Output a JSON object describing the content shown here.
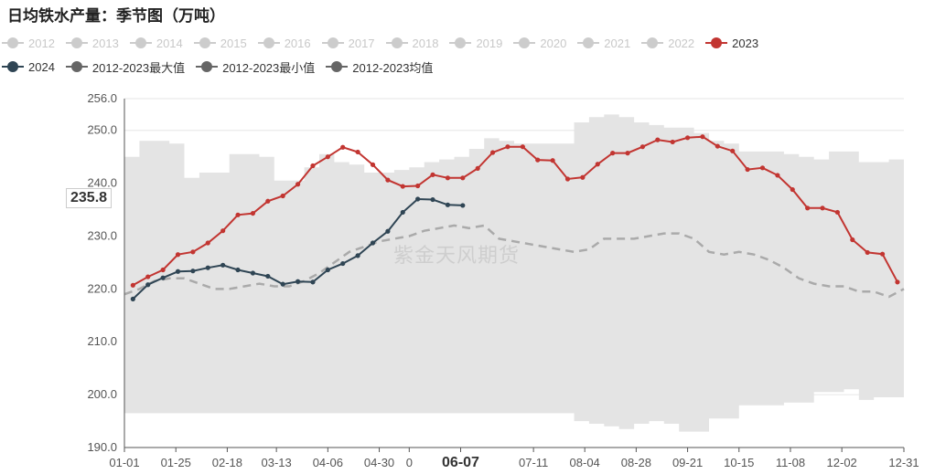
{
  "title": "日均铁水产量：季节图（万吨）",
  "legend": {
    "row1": [
      {
        "label": "2012",
        "color": "#cccccc",
        "off": true
      },
      {
        "label": "2013",
        "color": "#cccccc",
        "off": true
      },
      {
        "label": "2014",
        "color": "#cccccc",
        "off": true
      },
      {
        "label": "2015",
        "color": "#cccccc",
        "off": true
      },
      {
        "label": "2016",
        "color": "#cccccc",
        "off": true
      },
      {
        "label": "2017",
        "color": "#cccccc",
        "off": true
      },
      {
        "label": "2018",
        "color": "#cccccc",
        "off": true
      },
      {
        "label": "2019",
        "color": "#cccccc",
        "off": true
      },
      {
        "label": "2020",
        "color": "#cccccc",
        "off": true
      },
      {
        "label": "2021",
        "color": "#cccccc",
        "off": true
      },
      {
        "label": "2022",
        "color": "#cccccc",
        "off": true
      },
      {
        "label": "2023",
        "color": "#c23531",
        "off": false
      }
    ],
    "row2": [
      {
        "label": "2024",
        "color": "#2f4554",
        "off": false
      },
      {
        "label": "2012-2023最大值",
        "color": "#666666",
        "off": false
      },
      {
        "label": "2012-2023最小值",
        "color": "#666666",
        "off": false
      },
      {
        "label": "2012-2023均值",
        "color": "#666666",
        "off": false
      }
    ]
  },
  "watermark": "紫金天风期货",
  "tooltip_value": "235.8",
  "chart_data": {
    "type": "line",
    "title": "日均铁水产量：季节图（万吨）",
    "xlabel": "",
    "ylabel": "",
    "ylim": [
      190,
      256
    ],
    "y_ticks": [
      "190.0",
      "200.0",
      "210.0",
      "220.0",
      "230.0",
      "240.0",
      "250.0",
      "256.0"
    ],
    "x_ticks": [
      {
        "label": "01-01",
        "week": 0
      },
      {
        "label": "01-25",
        "week": 3.43
      },
      {
        "label": "02-18",
        "week": 6.86
      },
      {
        "label": "03-13",
        "week": 10.14
      },
      {
        "label": "04-06",
        "week": 13.57
      },
      {
        "label": "04-30",
        "week": 17.0
      },
      {
        "label": "0",
        "week": 19.0
      },
      {
        "label": "06-07",
        "week": 22.43
      },
      {
        "label": "07-11",
        "week": 27.29
      },
      {
        "label": "08-04",
        "week": 30.71
      },
      {
        "label": "08-28",
        "week": 34.14
      },
      {
        "label": "09-21",
        "week": 37.57
      },
      {
        "label": "10-15",
        "week": 41.0
      },
      {
        "label": "11-08",
        "week": 44.43
      },
      {
        "label": "12-02",
        "week": 47.86
      },
      {
        "label": "12-31",
        "week": 52.0
      }
    ],
    "x_range_weeks": [
      0,
      52
    ],
    "grid": true,
    "series": [
      {
        "name": "2023",
        "color": "#c23531",
        "style": "line-markers",
        "x": [
          0.57,
          1.57,
          2.57,
          3.57,
          4.57,
          5.57,
          6.57,
          7.57,
          8.57,
          9.57,
          10.57,
          11.57,
          12.57,
          13.57,
          14.57,
          15.57,
          16.57,
          17.57,
          18.57,
          19.57,
          20.57,
          21.57,
          22.57,
          23.57,
          24.57,
          25.57,
          26.57,
          27.57,
          28.57,
          29.57,
          30.57,
          31.57,
          32.57,
          33.57,
          34.57,
          35.57,
          36.57,
          37.57,
          38.57,
          39.57,
          40.57,
          41.57,
          42.57,
          43.57,
          44.57,
          45.57,
          46.57,
          47.57,
          48.57,
          49.57,
          50.57,
          51.57
        ],
        "y": [
          220.7,
          222.3,
          223.6,
          226.5,
          227.0,
          228.7,
          231.0,
          234.0,
          234.3,
          236.6,
          237.6,
          239.8,
          243.3,
          245.0,
          246.8,
          245.9,
          243.5,
          240.6,
          239.4,
          239.5,
          241.6,
          241.0,
          241.0,
          242.8,
          245.8,
          246.9,
          246.9,
          244.4,
          244.3,
          240.8,
          241.1,
          243.6,
          245.7,
          245.7,
          246.9,
          248.2,
          247.8,
          248.6,
          248.8,
          247.0,
          246.1,
          242.6,
          242.9,
          241.5,
          238.8,
          235.3,
          235.3,
          234.5,
          229.3,
          226.9,
          226.6,
          221.3
        ]
      },
      {
        "name": "2024",
        "color": "#2f4554",
        "style": "line-markers",
        "x": [
          0.57,
          1.57,
          2.57,
          3.57,
          4.57,
          5.57,
          6.57,
          7.57,
          8.57,
          9.57,
          10.57,
          11.57,
          12.57,
          13.57,
          14.57,
          15.57,
          16.57,
          17.57,
          18.57,
          19.57,
          20.57,
          21.57,
          22.57
        ],
        "y": [
          218.1,
          220.8,
          222.1,
          223.3,
          223.4,
          224.0,
          224.5,
          223.6,
          223.0,
          222.4,
          220.9,
          221.4,
          221.3,
          223.6,
          224.8,
          226.3,
          228.7,
          230.9,
          234.5,
          237.0,
          236.9,
          235.9,
          235.8
        ]
      },
      {
        "name": "2012-2023最大值",
        "color": "#dddddd",
        "style": "step-area-top",
        "x": [
          0,
          1,
          2,
          3,
          4,
          5,
          6,
          7,
          8,
          9,
          10,
          11,
          12,
          13,
          14,
          15,
          16,
          17,
          18,
          19,
          20,
          21,
          22,
          23,
          24,
          25,
          26,
          27,
          28,
          29,
          30,
          31,
          32,
          33,
          34,
          35,
          36,
          37,
          38,
          39,
          40,
          41,
          42,
          43,
          44,
          45,
          46,
          47,
          48,
          49,
          50,
          51,
          52
        ],
        "y": [
          245.0,
          248.0,
          248.0,
          247.5,
          241.0,
          242.0,
          242.0,
          245.5,
          245.5,
          245.0,
          240.5,
          240.5,
          243.0,
          245.5,
          244.0,
          243.5,
          242.0,
          242.0,
          242.5,
          243.0,
          244.0,
          244.5,
          245.0,
          246.5,
          248.5,
          248.0,
          247.5,
          247.5,
          247.5,
          247.5,
          251.5,
          252.5,
          253.0,
          252.5,
          251.5,
          251.0,
          250.5,
          250.5,
          249.5,
          248.0,
          247.5,
          246.0,
          246.0,
          246.0,
          245.5,
          245.0,
          244.5,
          246.0,
          246.0,
          244.0,
          244.0,
          244.5,
          244.5
        ]
      },
      {
        "name": "2012-2023最小值",
        "color": "#dddddd",
        "style": "step-area-bottom",
        "x": [
          0,
          1,
          2,
          3,
          4,
          5,
          6,
          7,
          8,
          9,
          10,
          11,
          12,
          13,
          14,
          15,
          16,
          17,
          18,
          19,
          20,
          21,
          22,
          23,
          24,
          25,
          26,
          27,
          28,
          29,
          30,
          31,
          32,
          33,
          34,
          35,
          36,
          37,
          38,
          39,
          40,
          41,
          42,
          43,
          44,
          45,
          46,
          47,
          48,
          49,
          50,
          51,
          52
        ],
        "y": [
          196.5,
          196.5,
          196.5,
          196.5,
          196.5,
          196.5,
          196.5,
          196.5,
          196.5,
          196.5,
          196.5,
          196.5,
          196.5,
          196.5,
          196.5,
          196.5,
          196.5,
          196.5,
          196.5,
          196.5,
          196.5,
          196.5,
          196.5,
          196.5,
          196.5,
          196.5,
          196.5,
          196.5,
          196.5,
          196.5,
          195.0,
          194.5,
          194.0,
          193.5,
          194.5,
          195.0,
          194.5,
          193.0,
          193.0,
          195.5,
          195.5,
          198.0,
          198.0,
          198.0,
          198.5,
          198.5,
          200.5,
          200.5,
          201.0,
          199.0,
          199.5,
          199.5,
          199.5
        ]
      },
      {
        "name": "2012-2023均值",
        "color": "#aaaaaa",
        "style": "dashed",
        "x": [
          0,
          1,
          2,
          3,
          4,
          5,
          6,
          7,
          8,
          9,
          10,
          11,
          12,
          13,
          14,
          15,
          16,
          17,
          18,
          19,
          20,
          21,
          22,
          23,
          24,
          25,
          26,
          27,
          28,
          29,
          30,
          31,
          32,
          33,
          34,
          35,
          36,
          37,
          38,
          39,
          40,
          41,
          42,
          43,
          44,
          45,
          46,
          47,
          48,
          49,
          50,
          51,
          52
        ],
        "y": [
          219.0,
          220.0,
          221.5,
          222.0,
          222.0,
          221.0,
          220.0,
          220.0,
          220.5,
          221.0,
          220.5,
          220.5,
          221.5,
          223.0,
          225.0,
          227.0,
          228.0,
          229.0,
          229.5,
          230.0,
          231.0,
          231.5,
          232.0,
          231.5,
          232.0,
          229.5,
          229.0,
          228.5,
          228.0,
          227.5,
          227.0,
          227.5,
          229.5,
          229.5,
          229.5,
          230.0,
          230.5,
          230.5,
          229.5,
          227.0,
          226.5,
          227.0,
          226.5,
          225.5,
          224.0,
          222.0,
          221.0,
          220.5,
          220.5,
          219.5,
          219.5,
          218.5,
          220.0
        ]
      }
    ]
  }
}
